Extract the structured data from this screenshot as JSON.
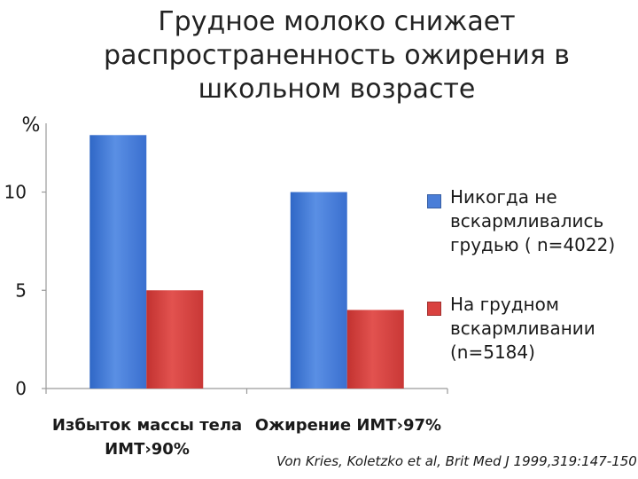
{
  "title_lines": [
    "Грудное молоко снижает",
    "распространенность ожирения в",
    "школьном возрасте"
  ],
  "citation": "Von Kries, Koletzko et al, Brit Med J 1999,319:147-150",
  "chart_data": {
    "type": "bar",
    "ylabel": "%",
    "ylim": [
      0,
      13.5
    ],
    "yticks": [
      "0",
      "5",
      "10"
    ],
    "ytick_values": [
      0,
      5,
      10
    ],
    "categories": [
      [
        "Избыток массы тела",
        "ИМТ›90%"
      ],
      [
        "Ожирение ИМТ›97%"
      ]
    ],
    "series": [
      {
        "name_lines": [
          "Никогда не",
          "вскармливались",
          "грудью ( n=4022)"
        ],
        "color": "#4a7ed8",
        "values": [
          12.9,
          10
        ]
      },
      {
        "name_lines": [
          "На грудном",
          "вскармливании",
          "(n=5184)"
        ],
        "color": "#d9413f",
        "values": [
          5,
          4
        ]
      }
    ],
    "grid": false,
    "legend_position": "right"
  }
}
